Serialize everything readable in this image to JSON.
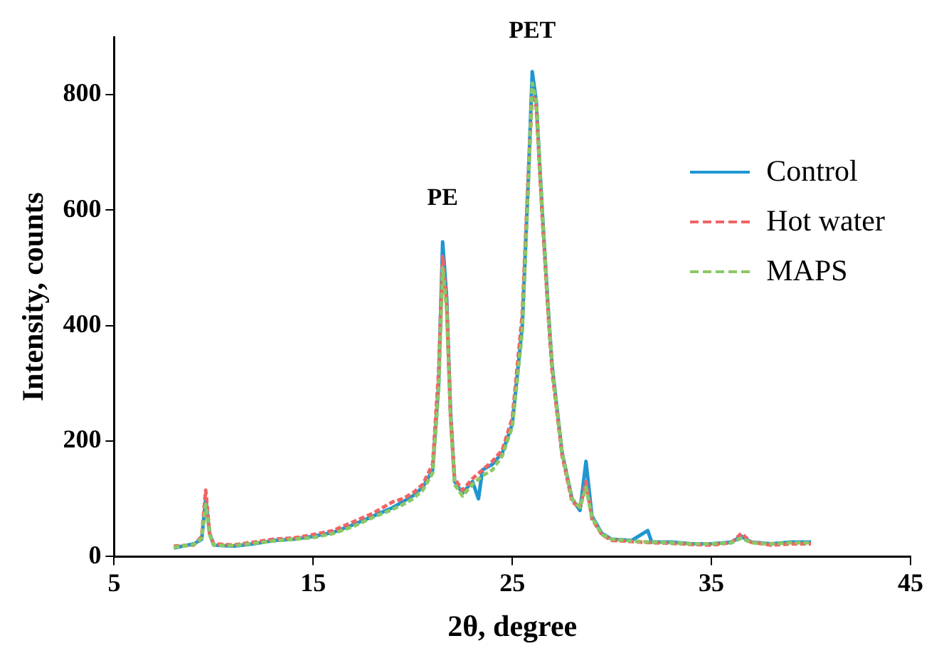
{
  "chart_data": {
    "type": "line",
    "xlabel": "2θ, degree",
    "ylabel": "Intensity, counts",
    "xlim": [
      5,
      45
    ],
    "xticks": [
      5,
      15,
      25,
      35,
      45
    ],
    "ylim": [
      0,
      900
    ],
    "yticks": [
      0,
      200,
      400,
      600,
      800
    ],
    "grid": false,
    "legend": "top right",
    "marker": "none",
    "annotations": [
      {
        "text": "PE",
        "x": 21.5,
        "y": 545
      },
      {
        "text": "PET",
        "x": 26,
        "y": 835
      }
    ],
    "series": [
      {
        "name": "Control",
        "color": "#1f96d2",
        "line_style": "solid",
        "x": [
          8,
          9,
          9.4,
          9.6,
          9.8,
          10,
          11,
          12,
          13,
          14,
          15,
          16,
          17,
          18,
          19,
          19.5,
          20,
          20.5,
          21,
          21.3,
          21.5,
          21.7,
          21.9,
          22.1,
          22.5,
          23,
          23.3,
          23.5,
          24,
          24.5,
          25,
          25.5,
          25.8,
          26,
          26.2,
          26.5,
          26.8,
          27,
          27.5,
          28,
          28.4,
          28.7,
          29,
          29.5,
          30,
          31,
          31.8,
          32,
          33,
          34,
          35,
          36,
          36.5,
          37,
          38,
          39,
          40
        ],
        "values": [
          15,
          22,
          30,
          100,
          40,
          20,
          18,
          22,
          28,
          30,
          35,
          42,
          55,
          70,
          85,
          95,
          105,
          120,
          150,
          300,
          545,
          450,
          250,
          130,
          110,
          130,
          100,
          150,
          160,
          180,
          230,
          400,
          650,
          840,
          790,
          600,
          430,
          330,
          180,
          100,
          80,
          165,
          70,
          40,
          30,
          28,
          45,
          25,
          25,
          22,
          22,
          25,
          35,
          25,
          22,
          25,
          25
        ]
      },
      {
        "name": "Hot water",
        "color": "#f06464",
        "line_style": "dashed",
        "x": [
          8,
          9,
          9.4,
          9.6,
          9.8,
          10,
          11,
          12,
          13,
          14,
          15,
          16,
          17,
          18,
          19,
          19.5,
          20,
          20.5,
          21,
          21.3,
          21.5,
          21.7,
          21.9,
          22.1,
          22.5,
          23,
          23.5,
          24,
          24.5,
          25,
          25.5,
          25.8,
          26,
          26.2,
          26.5,
          26.8,
          27,
          27.5,
          28,
          28.4,
          28.7,
          29,
          29.5,
          30,
          31,
          32,
          33,
          34,
          35,
          36,
          36.5,
          37,
          38,
          39,
          40
        ],
        "values": [
          18,
          20,
          35,
          115,
          40,
          22,
          20,
          25,
          30,
          32,
          38,
          45,
          60,
          75,
          95,
          100,
          110,
          125,
          160,
          320,
          520,
          440,
          240,
          135,
          115,
          135,
          150,
          165,
          185,
          240,
          420,
          660,
          800,
          780,
          590,
          420,
          320,
          175,
          95,
          85,
          130,
          65,
          38,
          28,
          26,
          24,
          23,
          21,
          20,
          24,
          40,
          25,
          20,
          22,
          22
        ]
      },
      {
        "name": "MAPS",
        "color": "#8cc864",
        "line_style": "dashed",
        "x": [
          8,
          9,
          9.4,
          9.6,
          9.8,
          10,
          11,
          12,
          13,
          14,
          15,
          16,
          17,
          18,
          19,
          19.5,
          20,
          20.5,
          21,
          21.3,
          21.5,
          21.7,
          21.9,
          22.1,
          22.5,
          23,
          23.5,
          24,
          24.5,
          25,
          25.5,
          25.8,
          26,
          26.2,
          26.5,
          26.8,
          27,
          27.5,
          28,
          28.4,
          28.7,
          29,
          29.5,
          30,
          31,
          32,
          33,
          34,
          35,
          36,
          36.5,
          37,
          38,
          39,
          40
        ],
        "values": [
          16,
          21,
          32,
          90,
          38,
          20,
          19,
          23,
          27,
          30,
          33,
          40,
          52,
          68,
          82,
          90,
          100,
          115,
          145,
          290,
          500,
          430,
          240,
          125,
          105,
          125,
          140,
          150,
          175,
          225,
          390,
          640,
          820,
          790,
          600,
          430,
          330,
          180,
          100,
          85,
          120,
          68,
          38,
          30,
          27,
          25,
          24,
          22,
          22,
          24,
          32,
          24,
          22,
          24,
          24
        ]
      }
    ]
  }
}
